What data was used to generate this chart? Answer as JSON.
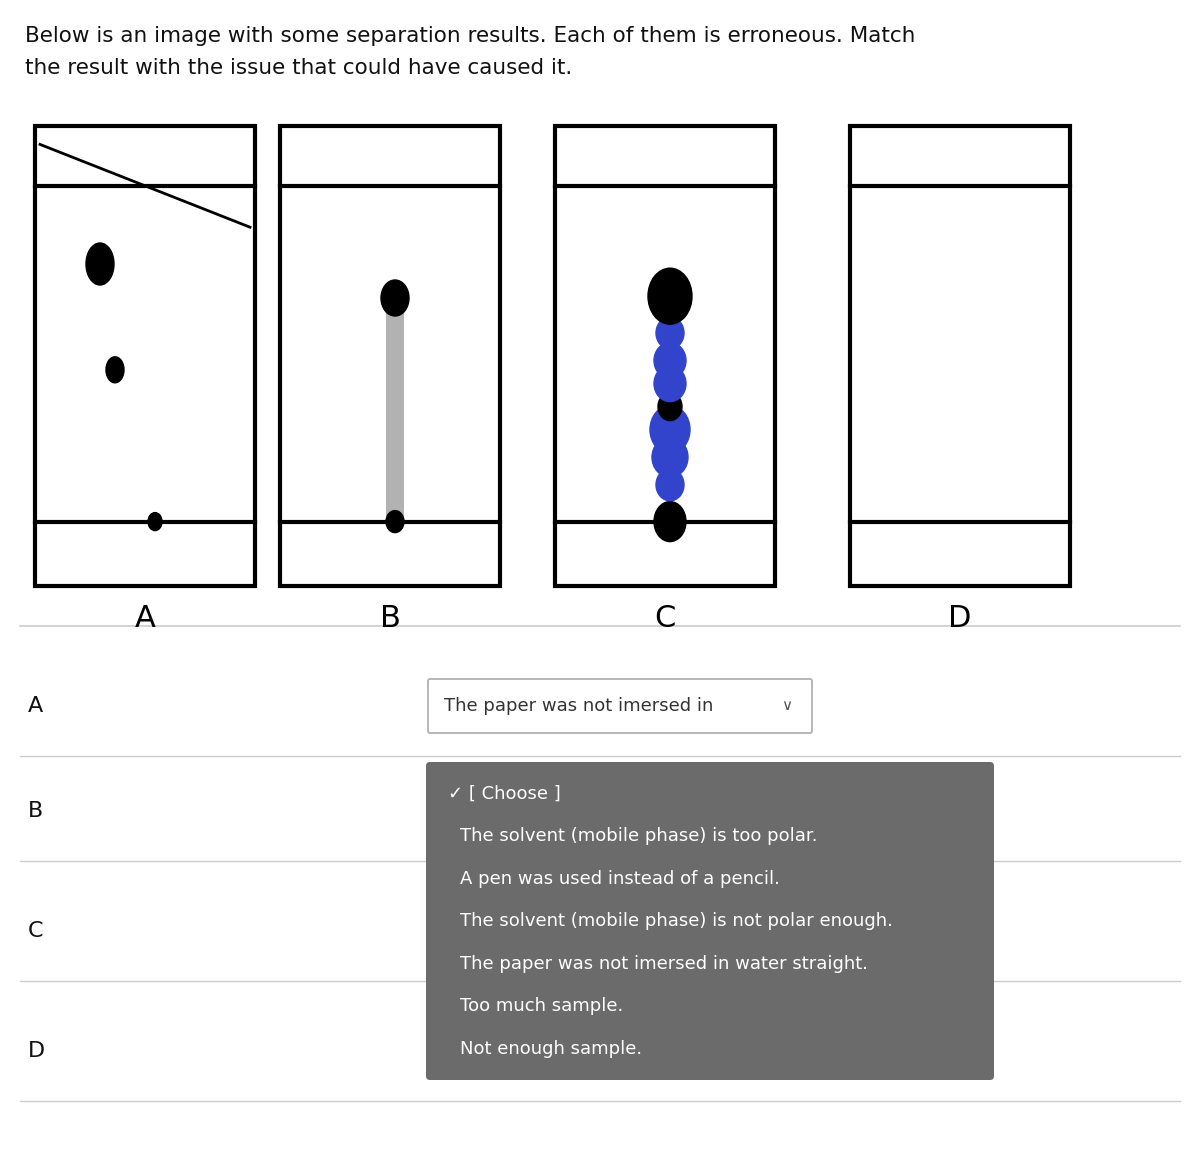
{
  "title_line1": "Below is an image with some separation results. Each of them is erroneous. Match",
  "title_line2": "the result with the issue that could have caused it.",
  "title_fontsize": 15.5,
  "panels": [
    "A",
    "B",
    "C",
    "D"
  ],
  "bg_color": "#ffffff",
  "row_labels": [
    "A",
    "B",
    "C",
    "D"
  ],
  "dropdown_text": "The paper was not imersed in",
  "popup_bg": "#6b6b6b",
  "popup_items": [
    "✓ [ Choose ]",
    "The solvent (mobile phase) is too polar.",
    "A pen was used instead of a pencil.",
    "The solvent (mobile phase) is not polar enough.",
    "The paper was not imersed in water straight.",
    "Too much sample.",
    "Not enough sample."
  ],
  "popup_text_color": "#ffffff",
  "panel_lw": 3.0,
  "smear_color": "#999999",
  "blue_dot_color": "#3344cc"
}
